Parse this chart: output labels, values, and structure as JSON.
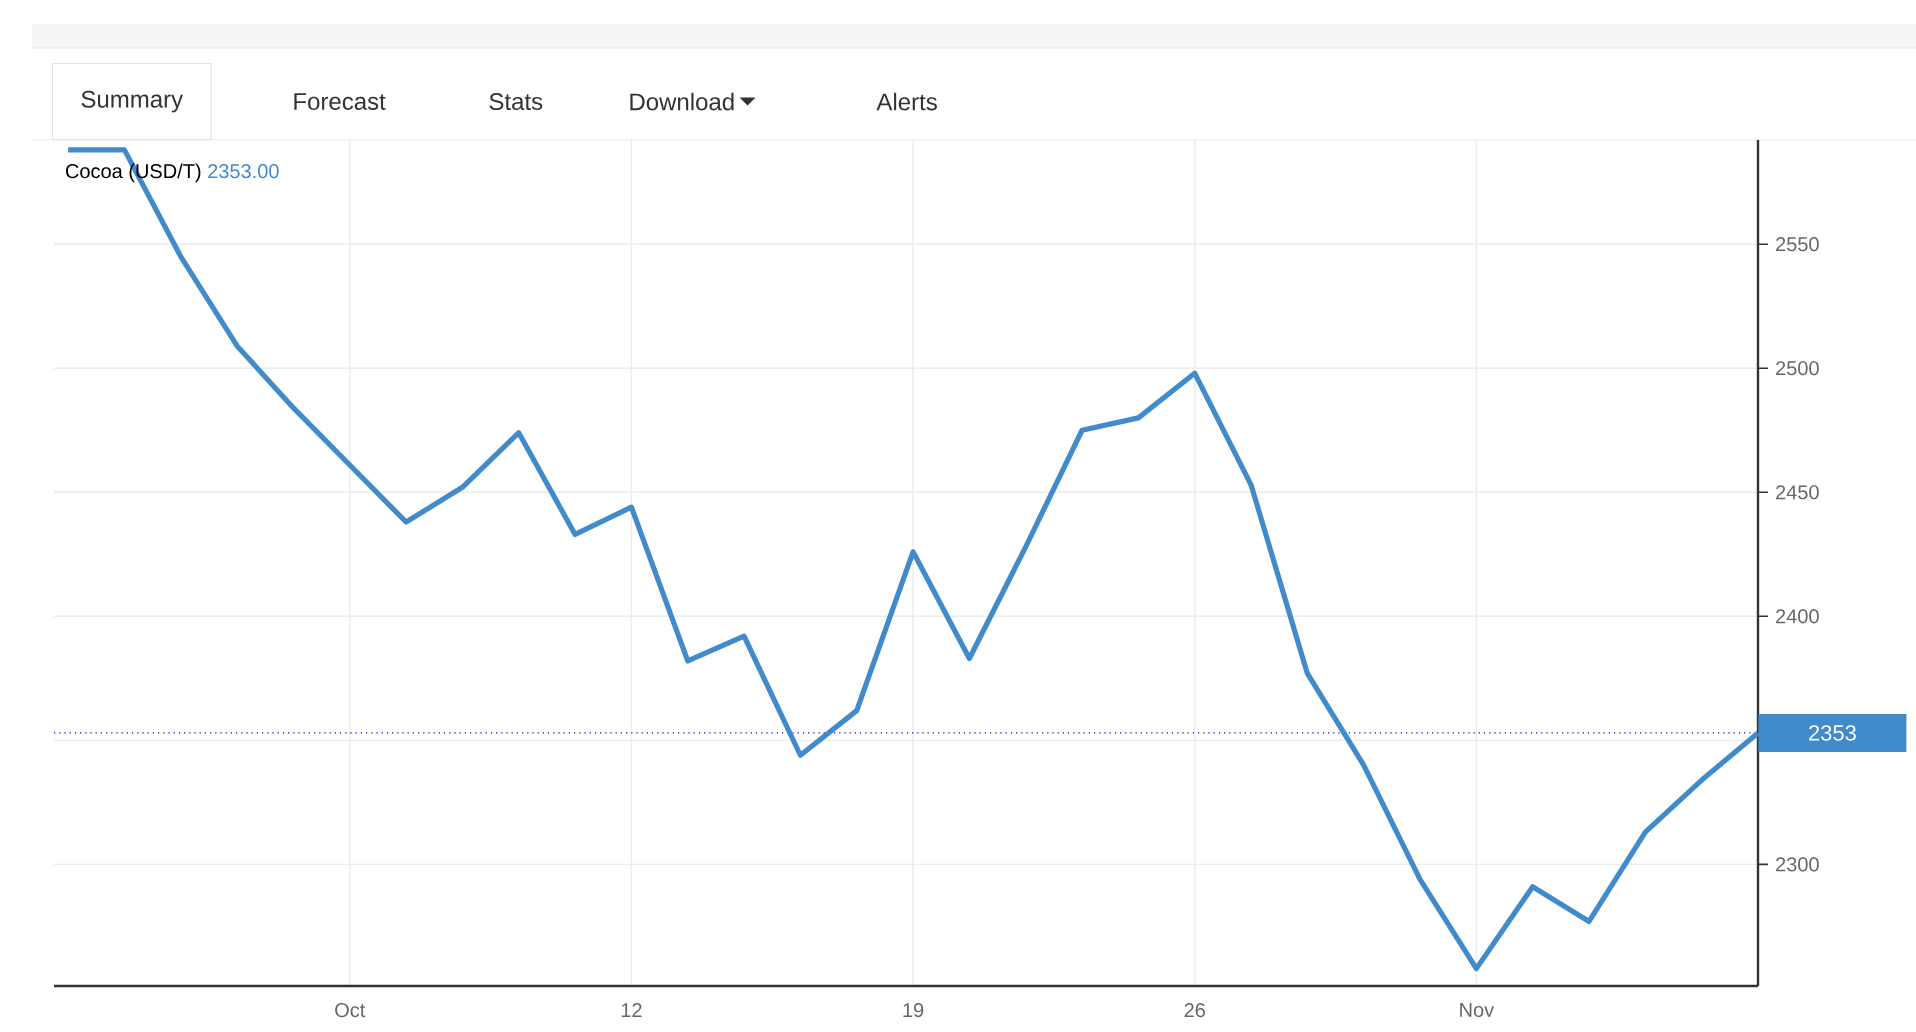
{
  "chart_data": {
    "type": "line",
    "title": "Cocoa (USD/T)",
    "subtitle": "2353.00",
    "annotations": [
      "Summary",
      "Forecast",
      "Stats",
      "Download",
      "Alerts"
    ],
    "categories": [
      null,
      null,
      null,
      null,
      null,
      "Oct",
      null,
      null,
      null,
      null,
      "12",
      null,
      null,
      null,
      null,
      "19",
      null,
      null,
      null,
      null,
      "26",
      null,
      null,
      null,
      null,
      "Nov",
      null,
      null,
      null,
      null,
      null
    ],
    "series": [
      {
        "color": "#428bca",
        "values": [
          2588,
          2588,
          2545,
          2509,
          2484,
          2461,
          2438,
          2452,
          2474,
          2433,
          2444,
          2382,
          2392,
          2344,
          2362,
          2426,
          2383,
          2428,
          2475,
          2480,
          2498,
          2453,
          2377,
          2340,
          2294,
          2258,
          2291,
          2277,
          2313,
          2334,
          2353
        ]
      }
    ],
    "ylim": [
      2251,
      2592
    ],
    "yticks": [
      2300,
      {
        "value": 2350,
        "label": null
      },
      2400,
      2450,
      2500,
      2550
    ],
    "grid": true,
    "marker": "none",
    "line_style": "solid",
    "ref_lines": [
      {
        "axis": "y",
        "value": 2353,
        "label": "2353",
        "color": "#0000ff",
        "line_style": "dotted"
      }
    ]
  }
}
